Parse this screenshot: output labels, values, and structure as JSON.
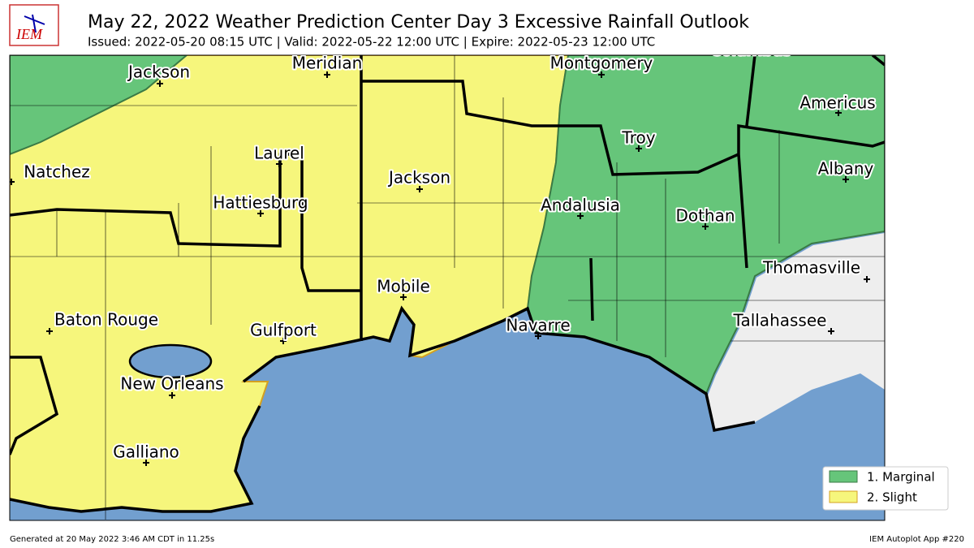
{
  "header": {
    "title": "May 22, 2022 Weather Prediction Center Day 3 Excessive Rainfall Outlook",
    "subtitle": "Issued: 2022-05-20 08:15 UTC | Valid: 2022-05-22 12:00 UTC | Expire: 2022-05-23 12:00 UTC",
    "logo": "IEM"
  },
  "cities": [
    {
      "name": "Jackson"
    },
    {
      "name": "Meridian"
    },
    {
      "name": "Montgomery"
    },
    {
      "name": "Columbus"
    },
    {
      "name": "Americus"
    },
    {
      "name": "Laurel"
    },
    {
      "name": "Troy"
    },
    {
      "name": "Natchez"
    },
    {
      "name": "Jackson"
    },
    {
      "name": "Albany"
    },
    {
      "name": "Hattiesburg"
    },
    {
      "name": "Andalusia"
    },
    {
      "name": "Dothan"
    },
    {
      "name": "Thomasville"
    },
    {
      "name": "Mobile"
    },
    {
      "name": "Baton Rouge"
    },
    {
      "name": "Navarre"
    },
    {
      "name": "Tallahassee"
    },
    {
      "name": "Gulfport"
    },
    {
      "name": "New Orleans"
    },
    {
      "name": "Galliano"
    }
  ],
  "legend": [
    {
      "label": "1. Marginal",
      "color": "#66c57a"
    },
    {
      "label": "2. Slight",
      "color": "#f6f67c"
    }
  ],
  "footer": {
    "left": "Generated at 20 May 2022 3:46 AM CDT in 11.25s",
    "right": "IEM Autoplot App #220"
  }
}
